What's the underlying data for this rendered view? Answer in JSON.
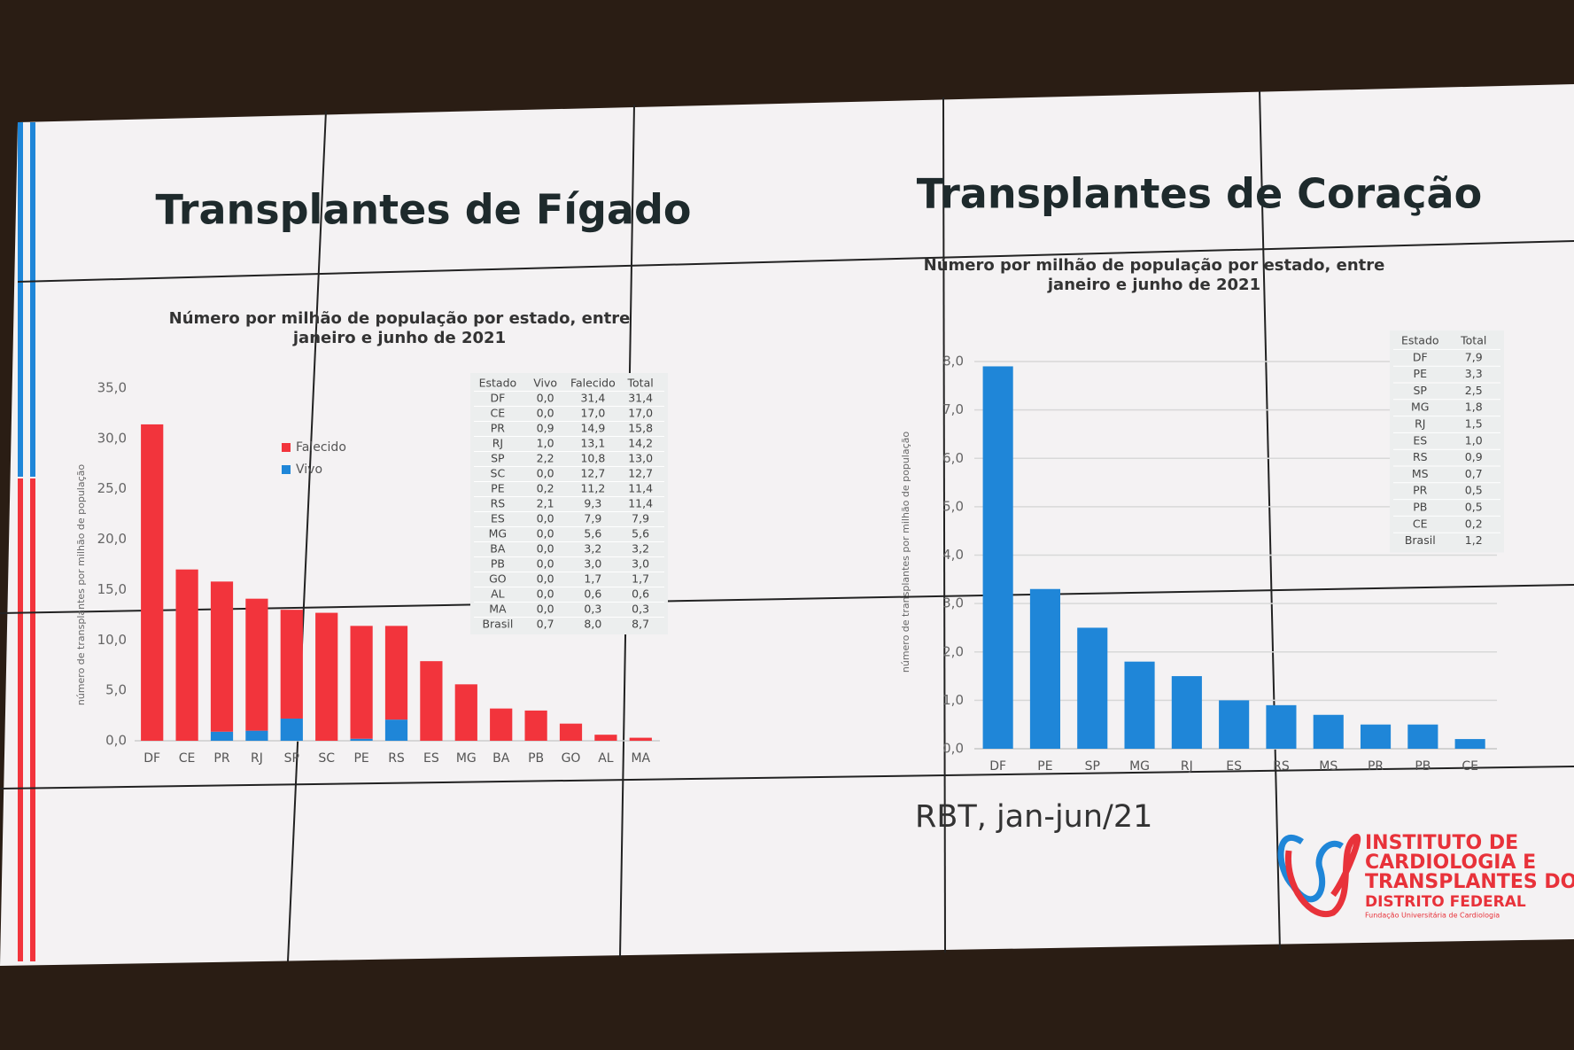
{
  "slide": {
    "source": "RBT, jan-jun/21",
    "logo": [
      "INSTITUTO DE",
      "CARDIOLOGIA E",
      "TRANSPLANTES DO",
      "DISTRITO FEDERAL",
      "Fundação Universitária de Cardiologia"
    ]
  },
  "chart_data": [
    {
      "type": "bar",
      "stacked": true,
      "title": "Transplantes de Fígado",
      "subtitle": [
        "Número por milhão de população por estado, entre",
        "janeiro e junho de 2021"
      ],
      "y_label": "número de transplantes por milhão de população",
      "categories": [
        "DF",
        "CE",
        "PR",
        "RJ",
        "SP",
        "SC",
        "PE",
        "RS",
        "ES",
        "MG",
        "BA",
        "PB",
        "GO",
        "AL",
        "MA"
      ],
      "series": [
        {
          "name": "Vivo",
          "color": "#1f86d8",
          "values": [
            0.0,
            0.0,
            0.9,
            1.0,
            2.2,
            0.0,
            0.2,
            2.1,
            0.0,
            0.0,
            0.0,
            0.0,
            0.0,
            0.0,
            0.0
          ]
        },
        {
          "name": "Falecido",
          "color": "#f2343c",
          "values": [
            31.4,
            17.0,
            14.9,
            13.1,
            10.8,
            12.7,
            11.2,
            9.3,
            7.9,
            5.6,
            3.2,
            3.0,
            1.7,
            0.6,
            0.3
          ]
        }
      ],
      "ylim": [
        0,
        35
      ],
      "yticks": [
        {
          "value": 0,
          "label": "0,0"
        },
        {
          "value": 5,
          "label": "5,0"
        },
        {
          "value": 10,
          "label": "10,0"
        },
        {
          "value": 15,
          "label": "15,0"
        },
        {
          "value": 20,
          "label": "20,0"
        },
        {
          "value": 25,
          "label": "25,0"
        },
        {
          "value": 30,
          "label": "30,0"
        },
        {
          "value": 35,
          "label": "35,0"
        }
      ],
      "grid": false,
      "legend": "upper-left",
      "table": {
        "columns": [
          "Estado",
          "Vivo",
          "Falecido",
          "Total"
        ],
        "rows": [
          [
            "DF",
            "0,0",
            "31,4",
            "31,4"
          ],
          [
            "CE",
            "0,0",
            "17,0",
            "17,0"
          ],
          [
            "PR",
            "0,9",
            "14,9",
            "15,8"
          ],
          [
            "RJ",
            "1,0",
            "13,1",
            "14,2"
          ],
          [
            "SP",
            "2,2",
            "10,8",
            "13,0"
          ],
          [
            "SC",
            "0,0",
            "12,7",
            "12,7"
          ],
          [
            "PE",
            "0,2",
            "11,2",
            "11,4"
          ],
          [
            "RS",
            "2,1",
            "9,3",
            "11,4"
          ],
          [
            "ES",
            "0,0",
            "7,9",
            "7,9"
          ],
          [
            "MG",
            "0,0",
            "5,6",
            "5,6"
          ],
          [
            "BA",
            "0,0",
            "3,2",
            "3,2"
          ],
          [
            "PB",
            "0,0",
            "3,0",
            "3,0"
          ],
          [
            "GO",
            "0,0",
            "1,7",
            "1,7"
          ],
          [
            "AL",
            "0,0",
            "0,6",
            "0,6"
          ],
          [
            "MA",
            "0,0",
            "0,3",
            "0,3"
          ],
          [
            "Brasil",
            "0,7",
            "8,0",
            "8,7"
          ]
        ]
      }
    },
    {
      "type": "bar",
      "title": "Transplantes de Coração",
      "subtitle": [
        "Número por milhão de população por estado, entre",
        "janeiro e junho de 2021"
      ],
      "y_label": "número de transplantes por milhão de população",
      "categories": [
        "DF",
        "PE",
        "SP",
        "MG",
        "RJ",
        "ES",
        "RS",
        "MS",
        "PR",
        "PB",
        "CE"
      ],
      "values": [
        7.9,
        3.3,
        2.5,
        1.8,
        1.5,
        1.0,
        0.9,
        0.7,
        0.5,
        0.5,
        0.2
      ],
      "color": "#1f86d8",
      "ylim": [
        0,
        8
      ],
      "yticks": [
        {
          "value": 0,
          "label": "0,0"
        },
        {
          "value": 1,
          "label": "1,0"
        },
        {
          "value": 2,
          "label": "2,0"
        },
        {
          "value": 3,
          "label": "3,0"
        },
        {
          "value": 4,
          "label": "4,0"
        },
        {
          "value": 5,
          "label": "5,0"
        },
        {
          "value": 6,
          "label": "6,0"
        },
        {
          "value": 7,
          "label": "7,0"
        },
        {
          "value": 8,
          "label": "8,0"
        }
      ],
      "grid": true,
      "table": {
        "columns": [
          "Estado",
          "Total"
        ],
        "rows": [
          [
            "DF",
            "7,9"
          ],
          [
            "PE",
            "3,3"
          ],
          [
            "SP",
            "2,5"
          ],
          [
            "MG",
            "1,8"
          ],
          [
            "RJ",
            "1,5"
          ],
          [
            "ES",
            "1,0"
          ],
          [
            "RS",
            "0,9"
          ],
          [
            "MS",
            "0,7"
          ],
          [
            "PR",
            "0,5"
          ],
          [
            "PB",
            "0,5"
          ],
          [
            "CE",
            "0,2"
          ],
          [
            "Brasil",
            "1,2"
          ]
        ]
      }
    }
  ]
}
